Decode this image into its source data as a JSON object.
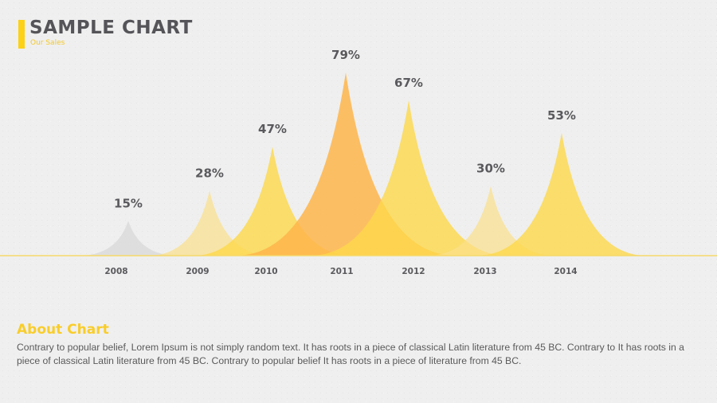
{
  "header": {
    "title": "SAMPLE CHART",
    "subtitle": "Our Sales"
  },
  "chart_data": {
    "type": "area",
    "title": "SAMPLE CHART",
    "subtitle": "Our Sales",
    "categories": [
      "2008",
      "2009",
      "2010",
      "2011",
      "2012",
      "2013",
      "2014"
    ],
    "values": [
      15,
      28,
      47,
      79,
      67,
      30,
      53
    ],
    "labels": [
      "15%",
      "28%",
      "47%",
      "79%",
      "67%",
      "30%",
      "53%"
    ],
    "colors": [
      "#d8d8d8",
      "#fbe08a",
      "#fdd84a",
      "#feb54a",
      "#fdd84a",
      "#fbe08a",
      "#fdd84a"
    ],
    "ylim": [
      0,
      100
    ],
    "grid": false,
    "legend": "none"
  },
  "about": {
    "title": "About Chart",
    "text": "Contrary to popular belief, Lorem Ipsum is not simply random text. It has roots in a piece of classical Latin literature from 45 BC. Contrary to It has roots in a piece of classical Latin literature from 45 BC. Contrary to popular belief It has roots in a piece of literature from 45 BC."
  },
  "colors": {
    "accent": "#fcd116",
    "title": "#555559",
    "baseline": "#f6d86a"
  }
}
